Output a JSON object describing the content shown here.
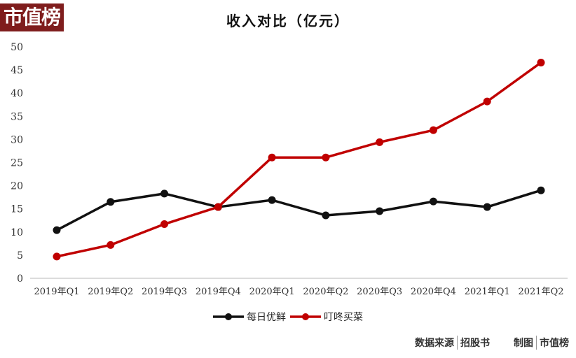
{
  "logo": {
    "text": "市值榜",
    "bg": "#7f1d1d"
  },
  "title": "收入对比（亿元）",
  "chart_data": {
    "type": "line",
    "title": "收入对比（亿元）",
    "xlabel": "",
    "ylabel": "",
    "ylim": [
      0,
      50
    ],
    "yticks": [
      0,
      5,
      10,
      15,
      20,
      25,
      30,
      35,
      40,
      45,
      50
    ],
    "grid": false,
    "legend_position": "bottom",
    "categories": [
      "2019年Q1",
      "2019年Q2",
      "2019年Q3",
      "2019年Q4",
      "2020年Q1",
      "2020年Q2",
      "2020年Q3",
      "2020年Q4",
      "2021年Q1",
      "2021年Q2"
    ],
    "series": [
      {
        "name": "每日优鲜",
        "color": "#111111",
        "values": [
          10.4,
          16.5,
          18.3,
          15.4,
          16.9,
          13.6,
          14.5,
          16.6,
          15.4,
          19.0
        ]
      },
      {
        "name": "叮咚买菜",
        "color": "#c00000",
        "values": [
          4.7,
          7.2,
          11.7,
          15.4,
          26.1,
          26.1,
          29.4,
          32.0,
          38.2,
          46.6
        ]
      }
    ]
  },
  "footer": {
    "source_label": "数据来源",
    "source_value": "招股书",
    "made_label": "制图",
    "made_value": "市值榜"
  }
}
